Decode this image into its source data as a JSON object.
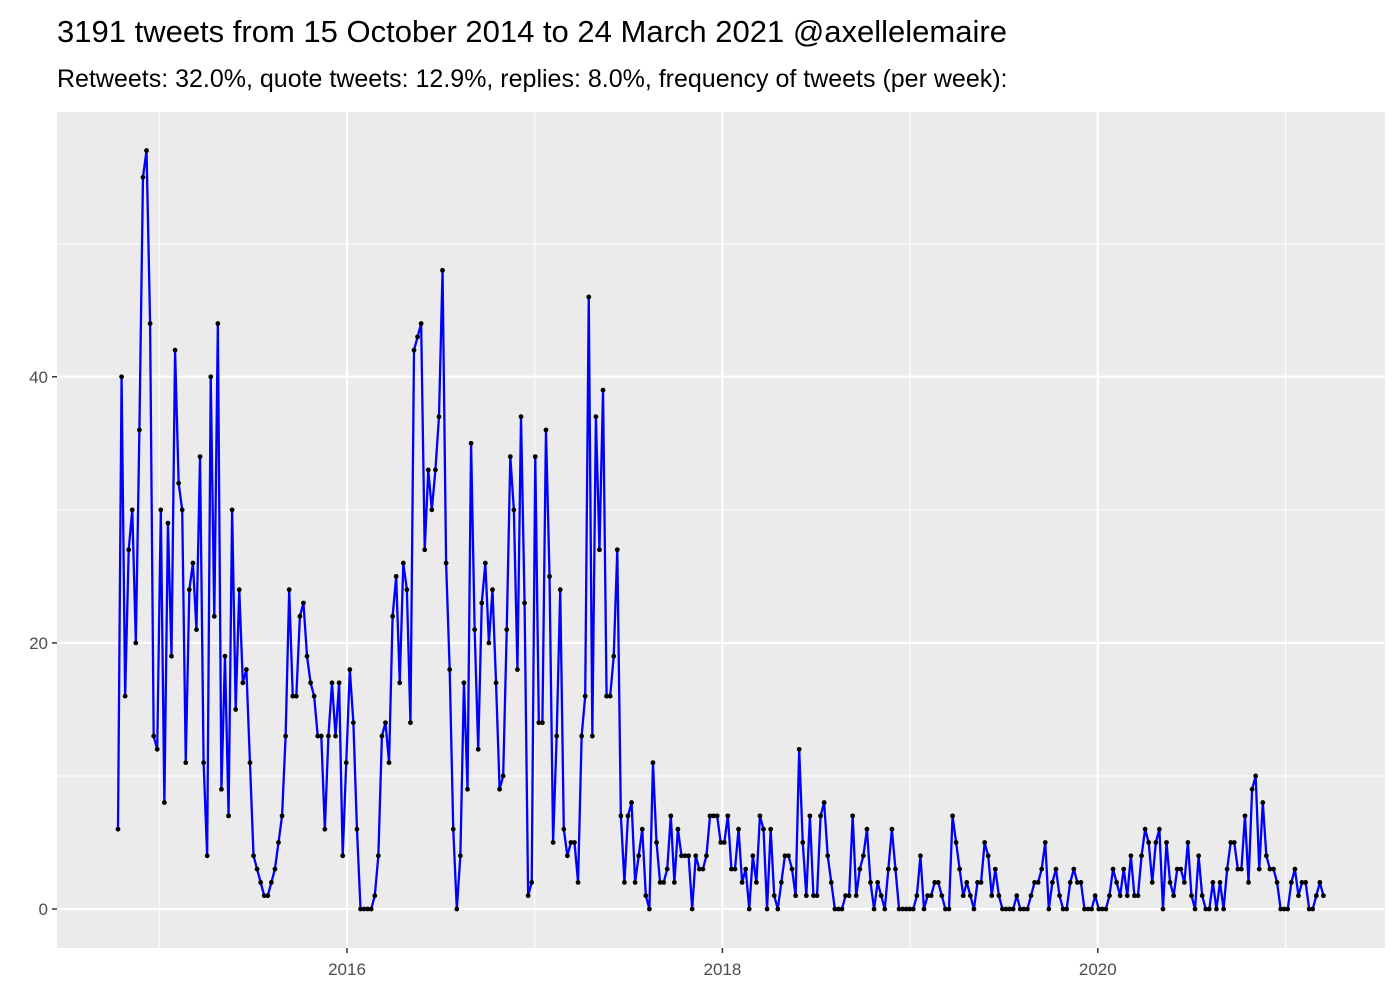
{
  "chart_data": {
    "type": "line",
    "title": "3191 tweets from 15 October 2014 to 24 March 2021 @axellelemaire",
    "subtitle": "Retweets: 32.0%, quote tweets: 12.9%, replies: 8.0%, frequency of tweets (per week):",
    "x": [
      2014.78,
      2014.799,
      2014.818,
      2014.837,
      2014.856,
      2014.875,
      2014.894,
      2014.913,
      2014.932,
      2014.951,
      2014.97,
      2014.989,
      2015.008,
      2015.027,
      2015.046,
      2015.065,
      2015.084,
      2015.103,
      2015.122,
      2015.141,
      2015.16,
      2015.179,
      2015.198,
      2015.217,
      2015.236,
      2015.255,
      2015.274,
      2015.293,
      2015.312,
      2015.331,
      2015.35,
      2015.369,
      2015.388,
      2015.407,
      2015.426,
      2015.445,
      2015.464,
      2015.483,
      2015.502,
      2015.521,
      2015.54,
      2015.559,
      2015.578,
      2015.597,
      2015.616,
      2015.635,
      2015.654,
      2015.673,
      2015.692,
      2015.711,
      2015.73,
      2015.749,
      2015.768,
      2015.787,
      2015.806,
      2015.825,
      2015.844,
      2015.863,
      2015.882,
      2015.901,
      2015.92,
      2015.939,
      2015.958,
      2015.977,
      2015.996,
      2016.015,
      2016.034,
      2016.053,
      2016.072,
      2016.091,
      2016.11,
      2016.129,
      2016.148,
      2016.167,
      2016.186,
      2016.205,
      2016.224,
      2016.243,
      2016.262,
      2016.281,
      2016.3,
      2016.319,
      2016.338,
      2016.357,
      2016.376,
      2016.395,
      2016.414,
      2016.433,
      2016.452,
      2016.471,
      2016.49,
      2016.509,
      2016.528,
      2016.547,
      2016.566,
      2016.585,
      2016.604,
      2016.623,
      2016.642,
      2016.661,
      2016.68,
      2016.699,
      2016.718,
      2016.737,
      2016.756,
      2016.775,
      2016.794,
      2016.813,
      2016.832,
      2016.851,
      2016.87,
      2016.889,
      2016.908,
      2016.927,
      2016.946,
      2016.965,
      2016.984,
      2017.003,
      2017.022,
      2017.041,
      2017.06,
      2017.079,
      2017.098,
      2017.117,
      2017.136,
      2017.155,
      2017.174,
      2017.193,
      2017.212,
      2017.231,
      2017.25,
      2017.269,
      2017.288,
      2017.307,
      2017.326,
      2017.345,
      2017.364,
      2017.383,
      2017.402,
      2017.421,
      2017.44,
      2017.459,
      2017.478,
      2017.497,
      2017.516,
      2017.535,
      2017.554,
      2017.573,
      2017.592,
      2017.611,
      2017.63,
      2017.649,
      2017.668,
      2017.687,
      2017.706,
      2017.725,
      2017.744,
      2017.763,
      2017.782,
      2017.801,
      2017.82,
      2017.839,
      2017.858,
      2017.877,
      2017.896,
      2017.915,
      2017.934,
      2017.953,
      2017.972,
      2017.991,
      2018.01,
      2018.029,
      2018.048,
      2018.067,
      2018.086,
      2018.105,
      2018.124,
      2018.143,
      2018.162,
      2018.181,
      2018.2,
      2018.219,
      2018.238,
      2018.257,
      2018.276,
      2018.295,
      2018.314,
      2018.333,
      2018.352,
      2018.371,
      2018.39,
      2018.409,
      2018.428,
      2018.447,
      2018.466,
      2018.485,
      2018.504,
      2018.523,
      2018.542,
      2018.561,
      2018.58,
      2018.599,
      2018.618,
      2018.637,
      2018.656,
      2018.675,
      2018.694,
      2018.713,
      2018.732,
      2018.751,
      2018.77,
      2018.789,
      2018.808,
      2018.827,
      2018.846,
      2018.865,
      2018.884,
      2018.903,
      2018.922,
      2018.941,
      2018.96,
      2018.979,
      2018.998,
      2019.017,
      2019.036,
      2019.055,
      2019.074,
      2019.093,
      2019.112,
      2019.131,
      2019.15,
      2019.169,
      2019.188,
      2019.207,
      2019.226,
      2019.245,
      2019.264,
      2019.283,
      2019.302,
      2019.321,
      2019.34,
      2019.359,
      2019.378,
      2019.397,
      2019.416,
      2019.435,
      2019.454,
      2019.473,
      2019.492,
      2019.511,
      2019.53,
      2019.549,
      2019.568,
      2019.587,
      2019.606,
      2019.625,
      2019.644,
      2019.663,
      2019.682,
      2019.701,
      2019.72,
      2019.739,
      2019.758,
      2019.777,
      2019.796,
      2019.815,
      2019.834,
      2019.853,
      2019.872,
      2019.891,
      2019.91,
      2019.929,
      2019.948,
      2019.967,
      2019.986,
      2020.005,
      2020.024,
      2020.043,
      2020.062,
      2020.081,
      2020.1,
      2020.119,
      2020.138,
      2020.157,
      2020.176,
      2020.195,
      2020.214,
      2020.233,
      2020.252,
      2020.271,
      2020.29,
      2020.309,
      2020.328,
      2020.347,
      2020.366,
      2020.385,
      2020.404,
      2020.423,
      2020.442,
      2020.461,
      2020.48,
      2020.499,
      2020.518,
      2020.537,
      2020.556,
      2020.575,
      2020.594,
      2020.613,
      2020.632,
      2020.651,
      2020.67,
      2020.689,
      2020.708,
      2020.727,
      2020.746,
      2020.765,
      2020.784,
      2020.803,
      2020.822,
      2020.841,
      2020.86,
      2020.879,
      2020.898,
      2020.917,
      2020.936,
      2020.955,
      2020.974,
      2020.993,
      2021.012,
      2021.031,
      2021.05,
      2021.069,
      2021.088,
      2021.107,
      2021.126,
      2021.145,
      2021.164,
      2021.183,
      2021.202
    ],
    "values": [
      6,
      40,
      16,
      27,
      30,
      20,
      36,
      55,
      57,
      44,
      13,
      12,
      30,
      8,
      29,
      19,
      42,
      32,
      30,
      11,
      24,
      26,
      21,
      34,
      11,
      4,
      40,
      22,
      44,
      9,
      19,
      7,
      30,
      15,
      24,
      17,
      18,
      11,
      4,
      3,
      2,
      1,
      1,
      2,
      3,
      5,
      7,
      13,
      24,
      16,
      16,
      22,
      23,
      19,
      17,
      16,
      13,
      13,
      6,
      13,
      17,
      13,
      17,
      4,
      11,
      18,
      14,
      6,
      0,
      0,
      0,
      0,
      1,
      4,
      13,
      14,
      11,
      22,
      25,
      17,
      26,
      24,
      14,
      42,
      43,
      44,
      27,
      33,
      30,
      33,
      37,
      48,
      26,
      18,
      6,
      0,
      4,
      17,
      9,
      35,
      21,
      12,
      23,
      26,
      20,
      24,
      17,
      9,
      10,
      21,
      34,
      30,
      18,
      37,
      23,
      1,
      2,
      34,
      14,
      14,
      36,
      25,
      5,
      13,
      24,
      6,
      4,
      5,
      5,
      2,
      13,
      16,
      46,
      13,
      37,
      27,
      39,
      16,
      16,
      19,
      27,
      7,
      2,
      7,
      8,
      2,
      4,
      6,
      1,
      0,
      11,
      5,
      2,
      2,
      3,
      7,
      2,
      6,
      4,
      4,
      4,
      0,
      4,
      3,
      3,
      4,
      7,
      7,
      7,
      5,
      5,
      7,
      3,
      3,
      6,
      2,
      3,
      0,
      4,
      2,
      7,
      6,
      0,
      6,
      1,
      0,
      2,
      4,
      4,
      3,
      1,
      12,
      5,
      1,
      7,
      1,
      1,
      7,
      8,
      4,
      2,
      0,
      0,
      0,
      1,
      1,
      7,
      1,
      3,
      4,
      6,
      2,
      0,
      2,
      1,
      0,
      3,
      6,
      3,
      0,
      0,
      0,
      0,
      0,
      1,
      4,
      0,
      1,
      1,
      2,
      2,
      1,
      0,
      0,
      7,
      5,
      3,
      1,
      2,
      1,
      0,
      2,
      2,
      5,
      4,
      1,
      3,
      1,
      0,
      0,
      0,
      0,
      1,
      0,
      0,
      0,
      1,
      2,
      2,
      3,
      5,
      0,
      2,
      3,
      1,
      0,
      0,
      2,
      3,
      2,
      2,
      0,
      0,
      0,
      1,
      0,
      0,
      0,
      1,
      3,
      2,
      1,
      3,
      1,
      4,
      1,
      1,
      4,
      6,
      5,
      2,
      5,
      6,
      0,
      5,
      2,
      1,
      3,
      3,
      2,
      5,
      1,
      0,
      4,
      1,
      0,
      0,
      2,
      0,
      2,
      0,
      3,
      5,
      5,
      3,
      3,
      7,
      2,
      9,
      10,
      3,
      8,
      4,
      3,
      3,
      2,
      0,
      0,
      0,
      2,
      3,
      1,
      2,
      2,
      0,
      0,
      1,
      2,
      1
    ],
    "color": "#0000ff",
    "point_color": "#000000",
    "xlim": [
      2014.455,
      2021.53
    ],
    "xticks": [
      2016,
      2018,
      2020
    ],
    "xminor": [
      2015,
      2017,
      2019,
      2021
    ],
    "ylim": [
      -2.93,
      59.9
    ],
    "yticks": [
      0,
      20,
      40
    ],
    "yminor": [
      10,
      30,
      50
    ],
    "grid": true
  }
}
